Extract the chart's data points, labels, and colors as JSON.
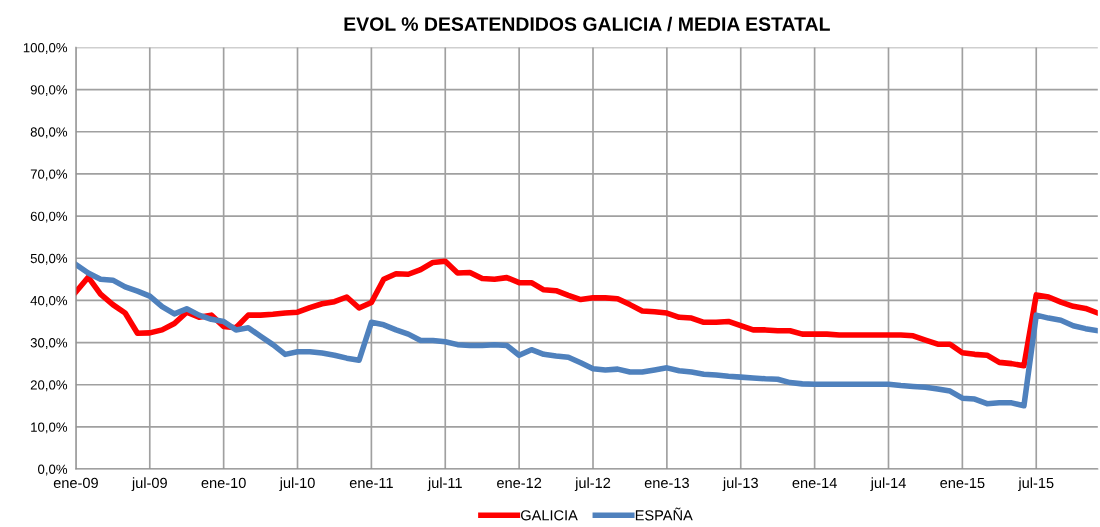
{
  "chart_data": {
    "type": "line",
    "title": "EVOL % DESATENDIDOS GALICIA / MEDIA ESTATAL",
    "categories": [
      "ene-09",
      null,
      null,
      null,
      null,
      null,
      "jul-09",
      null,
      null,
      null,
      null,
      null,
      "ene-10",
      null,
      null,
      null,
      null,
      null,
      "jul-10",
      null,
      null,
      null,
      null,
      null,
      "ene-11",
      null,
      null,
      null,
      null,
      null,
      "jul-11",
      null,
      null,
      null,
      null,
      null,
      "ene-12",
      null,
      null,
      null,
      null,
      null,
      "jul-12",
      null,
      null,
      null,
      null,
      null,
      "ene-13",
      null,
      null,
      null,
      null,
      null,
      "jul-13",
      null,
      null,
      null,
      null,
      null,
      "ene-14",
      null,
      null,
      null,
      null,
      null,
      "jul-14",
      null,
      null,
      null,
      null,
      null,
      "ene-15",
      null,
      null,
      null,
      null,
      null,
      "jul-15",
      null,
      null,
      null,
      null,
      null
    ],
    "series": [
      {
        "name": "GALICIA",
        "color": "#ff0000",
        "values": [
          42,
          45.5,
          41.5,
          39,
          37,
          32.2,
          32.3,
          33,
          34.5,
          37.2,
          36,
          36.5,
          33.8,
          33.5,
          36.5,
          36.5,
          36.7,
          37,
          37.2,
          38.3,
          39.2,
          39.7,
          40.8,
          38.2,
          39.5,
          45,
          46.3,
          46.2,
          47.3,
          49,
          49.3,
          46.5,
          46.6,
          45.2,
          45,
          45.4,
          44.2,
          44.2,
          42.5,
          42.3,
          41.2,
          40.2,
          40.6,
          40.6,
          40.4,
          39,
          37.5,
          37.3,
          37,
          36,
          35.8,
          34.8,
          34.8,
          35,
          34,
          33,
          33,
          32.8,
          32.8,
          32,
          32,
          32,
          31.8,
          31.8,
          31.8,
          31.8,
          31.8,
          31.8,
          31.6,
          30.6,
          29.6,
          29.6,
          27.6,
          27.2,
          27,
          25.3,
          25,
          24.5,
          41.3,
          40.8,
          39.6,
          38.6,
          38.1,
          37
        ]
      },
      {
        "name": "ESPAÑA",
        "color": "#4f81bd",
        "values": [
          48.5,
          46.5,
          45,
          44.8,
          43.2,
          42.2,
          41,
          38.5,
          36.8,
          38,
          36.5,
          35.5,
          35,
          33,
          33.5,
          31.5,
          29.5,
          27.2,
          27.8,
          27.8,
          27.5,
          27,
          26.3,
          25.8,
          34.8,
          34.2,
          33,
          32,
          30.5,
          30.5,
          30.2,
          29.5,
          29.3,
          29.3,
          29.5,
          29.3,
          27,
          28.3,
          27.2,
          26.8,
          26.5,
          25.2,
          23.8,
          23.5,
          23.7,
          23,
          23,
          23.5,
          24,
          23.3,
          23,
          22.5,
          22.3,
          22,
          21.8,
          21.6,
          21.4,
          21.3,
          20.5,
          20.2,
          20.1,
          20.1,
          20.1,
          20.1,
          20.1,
          20.1,
          20.1,
          19.8,
          19.6,
          19.4,
          19,
          18.5,
          16.8,
          16.6,
          15.5,
          15.7,
          15.7,
          15,
          36.5,
          35.8,
          35.3,
          34,
          33.3,
          32.8
        ]
      }
    ],
    "ylim": [
      0,
      100
    ],
    "yticks": [
      {
        "value": 0,
        "label": "0,0%"
      },
      {
        "value": 10,
        "label": "10,0%"
      },
      {
        "value": 20,
        "label": "20,0%"
      },
      {
        "value": 30,
        "label": "30,0%"
      },
      {
        "value": 40,
        "label": "40,0%"
      },
      {
        "value": 50,
        "label": "50,0%"
      },
      {
        "value": 60,
        "label": "60,0%"
      },
      {
        "value": 70,
        "label": "70,0%"
      },
      {
        "value": 80,
        "label": "80,0%"
      },
      {
        "value": 90,
        "label": "90,0%"
      },
      {
        "value": 100,
        "label": "100,0%"
      }
    ],
    "grid": true,
    "legend": "bottom",
    "marker": "none",
    "line_style": "solid"
  }
}
